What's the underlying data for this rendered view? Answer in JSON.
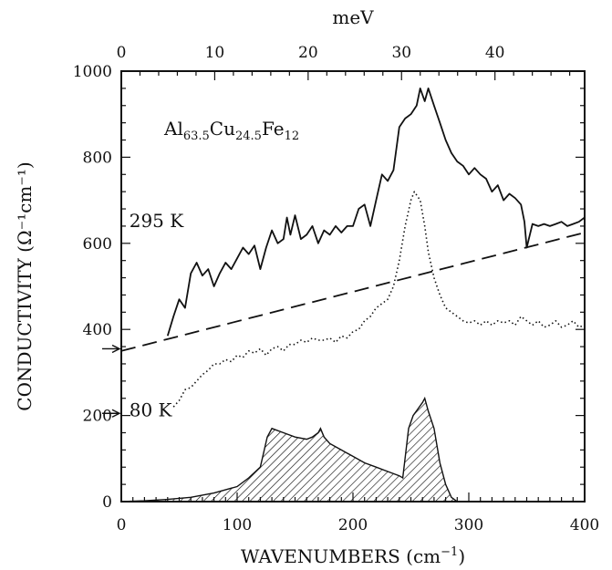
{
  "chart_data": {
    "type": "line",
    "title": "",
    "xlabel_main": "WAVENUMBERS",
    "xlabel_unit_base": "(cm",
    "xlabel_unit_exp": "−1",
    "xlabel_unit_close": ")",
    "ylabel_main": "CONDUCTIVITY",
    "ylabel_unit": "(Ω⁻¹cm⁻¹)",
    "top_axis_label": "meV",
    "xlim": [
      0,
      400
    ],
    "ylim": [
      0,
      1000
    ],
    "top_axis_range_meV": [
      0,
      49.6
    ],
    "x_ticks": [
      "0",
      "100",
      "200",
      "300",
      "400"
    ],
    "y_ticks": [
      "0",
      "200",
      "400",
      "600",
      "800",
      "1000"
    ],
    "top_ticks": [
      "0",
      "10",
      "20",
      "30",
      "40"
    ],
    "formula": {
      "parts": [
        {
          "t": "Al",
          "sub": false
        },
        {
          "t": "63.5",
          "sub": true
        },
        {
          "t": "Cu",
          "sub": false
        },
        {
          "t": "24.5",
          "sub": true
        },
        {
          "t": "Fe",
          "sub": false
        },
        {
          "t": "12",
          "sub": true
        }
      ]
    },
    "annotations": [
      {
        "text": "295 K",
        "x": 62,
        "y": 655
      },
      {
        "text": "80 K",
        "x": 62,
        "y": 215
      }
    ],
    "arrows_y": [
      355,
      205
    ],
    "series": [
      {
        "style": "solid",
        "x": [
          40,
          45,
          50,
          55,
          60,
          65,
          70,
          75,
          80,
          85,
          90,
          95,
          100,
          105,
          110,
          115,
          120,
          125,
          130,
          135,
          140,
          143,
          146,
          150,
          155,
          160,
          165,
          170,
          175,
          180,
          185,
          190,
          195,
          200,
          205,
          210,
          215,
          220,
          225,
          230,
          235,
          240,
          245,
          250,
          255,
          258,
          262,
          265,
          270,
          275,
          280,
          285,
          290,
          295,
          300,
          305,
          310,
          315,
          320,
          325,
          330,
          335,
          340,
          345,
          348,
          350,
          355,
          360,
          365,
          370,
          375,
          380,
          385,
          390,
          395,
          400
        ],
        "y": [
          385,
          430,
          470,
          450,
          530,
          555,
          525,
          540,
          500,
          530,
          555,
          540,
          565,
          590,
          575,
          595,
          540,
          590,
          630,
          600,
          610,
          660,
          620,
          665,
          610,
          620,
          640,
          600,
          630,
          620,
          640,
          625,
          640,
          640,
          680,
          690,
          640,
          700,
          760,
          745,
          770,
          870,
          890,
          900,
          920,
          960,
          930,
          960,
          920,
          880,
          840,
          810,
          790,
          780,
          760,
          775,
          760,
          750,
          720,
          735,
          700,
          715,
          705,
          690,
          650,
          590,
          645,
          640,
          645,
          640,
          645,
          650,
          640,
          645,
          650,
          660
        ]
      },
      {
        "style": "dashed",
        "x": [
          0,
          400
        ],
        "y": [
          350,
          625
        ]
      },
      {
        "style": "dotted",
        "x": [
          45,
          50,
          55,
          60,
          65,
          70,
          75,
          80,
          85,
          90,
          95,
          100,
          105,
          110,
          115,
          120,
          125,
          130,
          135,
          140,
          145,
          150,
          155,
          160,
          165,
          170,
          175,
          180,
          185,
          190,
          195,
          200,
          205,
          210,
          215,
          220,
          225,
          230,
          235,
          240,
          245,
          250,
          253,
          258,
          262,
          265,
          270,
          275,
          280,
          285,
          290,
          295,
          300,
          305,
          310,
          315,
          320,
          325,
          330,
          335,
          340,
          345,
          350,
          355,
          360,
          365,
          370,
          375,
          380,
          385,
          390,
          395,
          400
        ],
        "y": [
          220,
          235,
          260,
          265,
          280,
          295,
          305,
          320,
          320,
          330,
          325,
          340,
          335,
          350,
          345,
          355,
          340,
          355,
          360,
          350,
          365,
          365,
          375,
          370,
          380,
          375,
          375,
          380,
          370,
          385,
          380,
          395,
          400,
          420,
          430,
          450,
          460,
          470,
          500,
          560,
          640,
          700,
          720,
          700,
          640,
          580,
          520,
          480,
          450,
          440,
          430,
          420,
          415,
          420,
          410,
          420,
          410,
          420,
          415,
          420,
          410,
          430,
          420,
          410,
          420,
          405,
          410,
          420,
          405,
          410,
          420,
          405,
          410
        ]
      },
      {
        "style": "hatched-area",
        "x": [
          0,
          20,
          40,
          60,
          80,
          100,
          110,
          120,
          126,
          130,
          140,
          150,
          160,
          165,
          170,
          172,
          175,
          180,
          190,
          200,
          210,
          220,
          230,
          240,
          243,
          248,
          252,
          256,
          260,
          262,
          265,
          270,
          275,
          280,
          285,
          290
        ],
        "y": [
          0,
          2,
          5,
          10,
          20,
          35,
          55,
          80,
          150,
          170,
          160,
          150,
          145,
          150,
          160,
          170,
          150,
          135,
          120,
          105,
          90,
          80,
          70,
          60,
          55,
          170,
          200,
          215,
          230,
          240,
          210,
          170,
          90,
          40,
          10,
          0
        ]
      }
    ]
  }
}
